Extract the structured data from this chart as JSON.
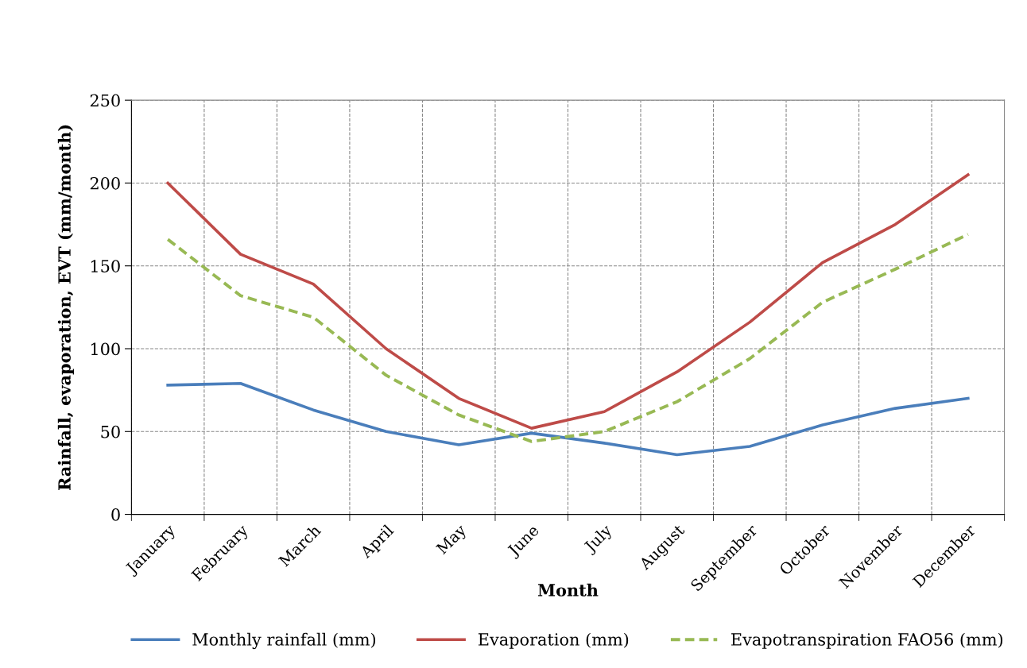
{
  "chart_data": {
    "type": "line",
    "xlabel": "Month",
    "ylabel": "Rainfall, evaporation, EVT (mm/month)",
    "categories": [
      "January",
      "February",
      "March",
      "April",
      "May",
      "June",
      "July",
      "August",
      "September",
      "October",
      "November",
      "December"
    ],
    "series": [
      {
        "name": "Monthly rainfall (mm)",
        "color": "#4a7ebb",
        "line_style": "solid",
        "values": [
          78,
          79,
          63,
          50,
          42,
          49,
          43,
          36,
          41,
          54,
          64,
          70
        ]
      },
      {
        "name": "Evaporation (mm)",
        "color": "#be4b48",
        "line_style": "solid",
        "values": [
          200,
          157,
          139,
          100,
          70,
          52,
          62,
          86,
          116,
          152,
          175,
          205
        ]
      },
      {
        "name": "Evapotranspiration FAO56 (mm)",
        "color": "#98b954",
        "line_style": "dashed",
        "values": [
          166,
          132,
          119,
          84,
          60,
          44,
          50,
          68,
          94,
          128,
          148,
          169
        ]
      }
    ],
    "ylim": [
      0,
      250
    ],
    "yticks": [
      0,
      50,
      100,
      150,
      200,
      250
    ],
    "grid": true,
    "legend": "bottom",
    "marker": "none"
  }
}
